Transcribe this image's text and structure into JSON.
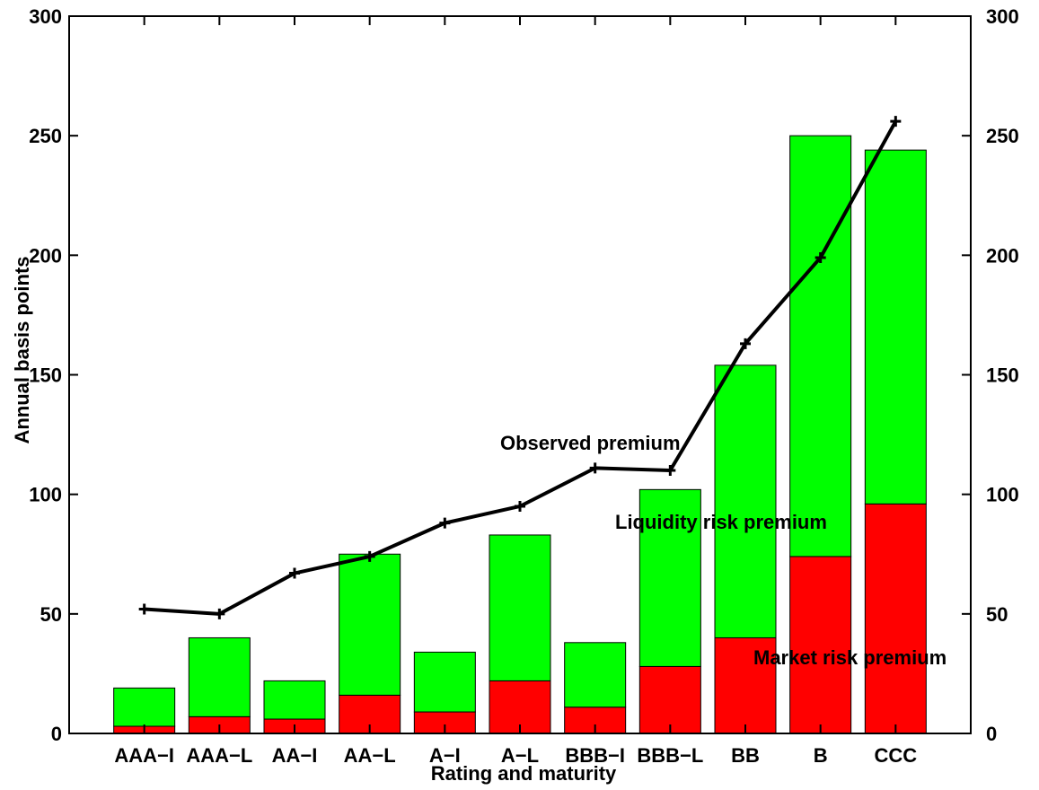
{
  "chart_data": {
    "type": "bar",
    "categories": [
      "AAA−I",
      "AAA−L",
      "AA−I",
      "AA−L",
      "A−I",
      "A−L",
      "BBB−I",
      "BBB−L",
      "BB",
      "B",
      "CCC"
    ],
    "series": [
      {
        "name": "Market risk premium",
        "color": "#ff0000",
        "values": [
          3,
          7,
          6,
          16,
          9,
          22,
          11,
          28,
          40,
          74,
          96
        ]
      },
      {
        "name": "Liquidity risk premium",
        "color": "#00ff00",
        "values": [
          16,
          33,
          16,
          59,
          25,
          61,
          27,
          74,
          114,
          176,
          148
        ]
      }
    ],
    "line": {
      "name": "Observed premium",
      "color": "#000000",
      "marker": "plus",
      "values": [
        52,
        50,
        67,
        74,
        88,
        95,
        111,
        110,
        163,
        199,
        256
      ]
    },
    "stacked": true,
    "xlabel": "Rating and maturity",
    "ylabel": "Annual basis points",
    "ylim": [
      0,
      300
    ],
    "yticks": [
      0,
      50,
      100,
      150,
      200,
      250,
      300
    ],
    "ylabel_right": "",
    "annotations": [
      "Observed premium",
      "Liquidity risk premium",
      "Market risk premium"
    ],
    "legend": "none (inline annotations)",
    "grid": false
  }
}
